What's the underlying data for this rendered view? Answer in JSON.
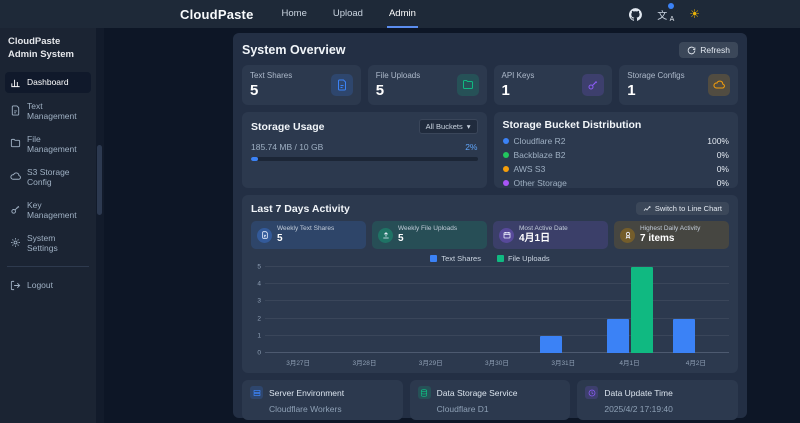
{
  "navbar": {
    "brand": "CloudPaste",
    "links": [
      {
        "label": "Home",
        "active": false
      },
      {
        "label": "Upload",
        "active": false
      },
      {
        "label": "Admin",
        "active": true
      }
    ],
    "icons": [
      "github-icon",
      "language-icon",
      "theme-sun-icon"
    ]
  },
  "sidebar": {
    "title": "CloudPaste Admin System",
    "items": [
      {
        "label": "Dashboard",
        "icon": "bar-chart-icon",
        "active": true
      },
      {
        "label": "Text Management",
        "icon": "document-icon",
        "active": false
      },
      {
        "label": "File Management",
        "icon": "folder-icon",
        "active": false
      },
      {
        "label": "S3 Storage Config",
        "icon": "cloud-icon",
        "active": false
      },
      {
        "label": "Key Management",
        "icon": "key-icon",
        "active": false
      },
      {
        "label": "System Settings",
        "icon": "gear-icon",
        "active": false
      }
    ],
    "logout_label": "Logout",
    "logout_icon": "logout-icon"
  },
  "overview": {
    "title": "System Overview",
    "refresh_label": "Refresh",
    "stats": [
      {
        "label": "Text Shares",
        "value": "5",
        "icon": "document-icon",
        "color": "#3b82f6"
      },
      {
        "label": "File Uploads",
        "value": "5",
        "icon": "folder-icon",
        "color": "#10b981"
      },
      {
        "label": "API Keys",
        "value": "1",
        "icon": "key-icon",
        "color": "#8b5cf6"
      },
      {
        "label": "Storage Configs",
        "value": "1",
        "icon": "cloud-icon",
        "color": "#f59e0b"
      }
    ]
  },
  "storage_usage": {
    "title": "Storage Usage",
    "bucket_filter": "All Buckets",
    "usage_text": "185.74 MB / 10 GB",
    "percent": 2,
    "percent_label": "2%",
    "bar_color": "#3b82f6"
  },
  "bucket_distribution": {
    "title": "Storage Bucket Distribution",
    "rows": [
      {
        "name": "Cloudflare R2",
        "percent": "100%",
        "color": "#3b82f6"
      },
      {
        "name": "Backblaze B2",
        "percent": "0%",
        "color": "#22c55e"
      },
      {
        "name": "AWS S3",
        "percent": "0%",
        "color": "#f59e0b"
      },
      {
        "name": "Other Storage",
        "percent": "0%",
        "color": "#a855f7"
      }
    ]
  },
  "activity": {
    "title": "Last 7 Days Activity",
    "switch_label": "Switch to Line Chart",
    "switch_icon": "line-chart-icon",
    "cards": [
      {
        "label": "Weekly Text Shares",
        "value": "5",
        "icon": "document-icon",
        "color": "#3b82f6"
      },
      {
        "label": "Weekly File Uploads",
        "value": "5",
        "icon": "upload-icon",
        "color": "#10b981"
      },
      {
        "label": "Most Active Date",
        "value": "4月1日",
        "icon": "calendar-icon",
        "color": "#8b5cf6"
      },
      {
        "label": "Highest Daily Activity",
        "value": "7 items",
        "icon": "award-icon",
        "color": "#ca8a04"
      }
    ]
  },
  "chart_data": {
    "type": "bar",
    "title": "Last 7 Days Activity",
    "categories": [
      "3月27日",
      "3月28日",
      "3月29日",
      "3月30日",
      "3月31日",
      "4月1日",
      "4月2日"
    ],
    "series": [
      {
        "name": "Text Shares",
        "color": "#3b82f6",
        "values": [
          0,
          0,
          0,
          0,
          1,
          2,
          2
        ]
      },
      {
        "name": "File Uploads",
        "color": "#10b981",
        "values": [
          0,
          0,
          0,
          0,
          0,
          5,
          0
        ]
      }
    ],
    "ylim": [
      0,
      5
    ],
    "yticks": [
      0,
      1,
      2,
      3,
      4,
      5
    ],
    "xlabel": "",
    "ylabel": "",
    "grid": true,
    "legend_position": "top-center"
  },
  "footer_cards": [
    {
      "label": "Server Environment",
      "value": "Cloudflare Workers",
      "icon": "server-icon",
      "color": "#3b82f6"
    },
    {
      "label": "Data Storage Service",
      "value": "Cloudflare D1",
      "icon": "database-icon",
      "color": "#10b981"
    },
    {
      "label": "Data Update Time",
      "value": "2025/4/2 17:19:40",
      "icon": "clock-icon",
      "color": "#8b5cf6"
    }
  ]
}
